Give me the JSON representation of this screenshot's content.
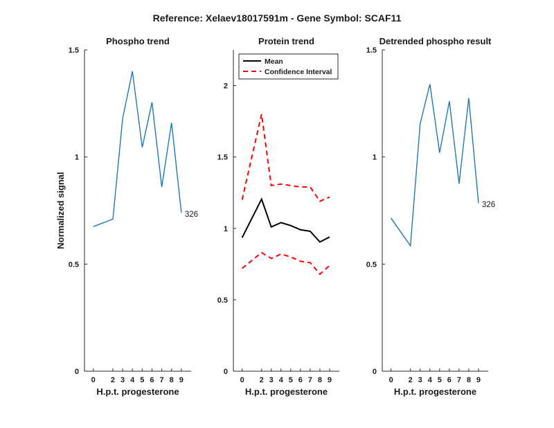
{
  "figure": {
    "title": "Reference:  Xelaev18017591m - Gene Symbol:  SCAF11"
  },
  "chart_data": [
    {
      "type": "line",
      "title": "Phospho trend",
      "xlabel": "H.p.t. progesterone",
      "ylabel": "Normalized signal",
      "x": [
        0,
        2,
        3,
        4,
        5,
        6,
        7,
        8,
        9
      ],
      "xlim": [
        -0.9,
        10
      ],
      "ylim": [
        0,
        1.5
      ],
      "yticks": [
        "0",
        "0.5",
        "1",
        "1.5"
      ],
      "series": [
        {
          "color": "#1f77b4",
          "values": [
            0.675,
            0.71,
            1.18,
            1.4,
            1.045,
            1.255,
            0.86,
            1.16,
            0.74
          ]
        }
      ],
      "end_label": "326"
    },
    {
      "type": "line",
      "title": "Protein trend",
      "xlabel": "H.p.t. progesterone",
      "ylabel": "",
      "x": [
        0,
        2,
        3,
        4,
        5,
        6,
        7,
        8,
        9
      ],
      "xlim": [
        -0.9,
        10
      ],
      "ylim": [
        0,
        2.25
      ],
      "yticks": [
        "0",
        "0.5",
        "1",
        "1.5",
        "2"
      ],
      "legend": {
        "position": "top-left"
      },
      "series": [
        {
          "name": "Mean",
          "color": "#000000",
          "style": "solid",
          "values": [
            0.935,
            1.205,
            1.01,
            1.04,
            1.02,
            0.99,
            0.98,
            0.905,
            0.94
          ]
        },
        {
          "name": "Confidence Interval",
          "color": "#ff0000",
          "style": "dashed",
          "values": [
            1.2,
            1.8,
            1.3,
            1.31,
            1.3,
            1.29,
            1.29,
            1.19,
            1.22
          ]
        },
        {
          "name": "",
          "color": "#ff0000",
          "style": "dashed",
          "values": [
            0.72,
            0.83,
            0.79,
            0.82,
            0.8,
            0.77,
            0.76,
            0.68,
            0.74
          ]
        }
      ]
    },
    {
      "type": "line",
      "title": "Detrended phospho result",
      "xlabel": "H.p.t. progesterone",
      "ylabel": "",
      "x": [
        0,
        2,
        3,
        4,
        5,
        6,
        7,
        8,
        9
      ],
      "xlim": [
        -0.9,
        10
      ],
      "ylim": [
        0,
        1.5
      ],
      "yticks": [
        "0",
        "0.5",
        "1",
        "1.5"
      ],
      "series": [
        {
          "color": "#1f77b4",
          "values": [
            0.715,
            0.585,
            1.155,
            1.34,
            1.02,
            1.26,
            0.875,
            1.275,
            0.785
          ]
        }
      ],
      "end_label": "326"
    }
  ]
}
